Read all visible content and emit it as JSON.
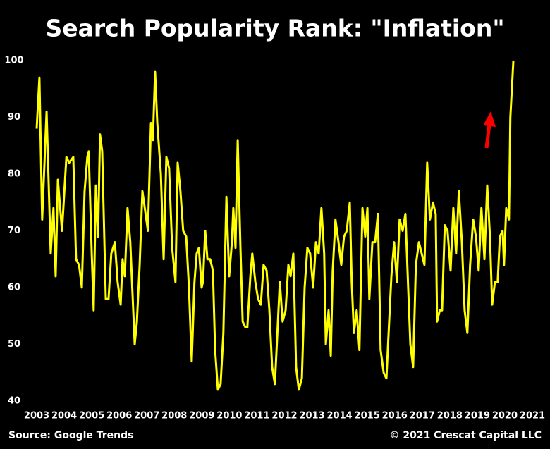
{
  "chart_data": {
    "type": "line",
    "title": "Search Popularity Rank: \"Inflation\"",
    "source": "Source: Google Trends",
    "copyright": "© 2021 Crescat Capital LLC",
    "color": "#ffff00",
    "xlim": [
      2003,
      2021
    ],
    "xticks": [
      2003,
      2004,
      2005,
      2006,
      2007,
      2008,
      2009,
      2010,
      2011,
      2012,
      2013,
      2014,
      2015,
      2016,
      2017,
      2018,
      2019,
      2020,
      2021
    ],
    "ylim": [
      40,
      100
    ],
    "yticks": [
      40,
      50,
      60,
      70,
      80,
      90,
      100
    ],
    "grid": false,
    "x": [
      2003.0,
      2003.1,
      2003.2,
      2003.36,
      2003.51,
      2003.61,
      2003.69,
      2003.77,
      2003.92,
      2004.08,
      2004.18,
      2004.33,
      2004.43,
      2004.54,
      2004.64,
      2004.74,
      2004.84,
      2004.89,
      2005.0,
      2005.07,
      2005.15,
      2005.23,
      2005.3,
      2005.38,
      2005.51,
      2005.61,
      2005.71,
      2005.84,
      2005.94,
      2006.05,
      2006.12,
      2006.2,
      2006.3,
      2006.4,
      2006.48,
      2006.56,
      2006.64,
      2006.74,
      2006.84,
      2006.94,
      2007.04,
      2007.15,
      2007.22,
      2007.3,
      2007.38,
      2007.51,
      2007.61,
      2007.71,
      2007.81,
      2007.92,
      2008.04,
      2008.12,
      2008.22,
      2008.32,
      2008.43,
      2008.53,
      2008.63,
      2008.73,
      2008.81,
      2008.89,
      2008.99,
      2009.04,
      2009.12,
      2009.2,
      2009.3,
      2009.4,
      2009.48,
      2009.58,
      2009.68,
      2009.78,
      2009.89,
      2009.99,
      2010.09,
      2010.14,
      2010.22,
      2010.3,
      2010.4,
      2010.48,
      2010.58,
      2010.65,
      2010.76,
      2010.83,
      2010.94,
      2011.04,
      2011.14,
      2011.24,
      2011.35,
      2011.45,
      2011.55,
      2011.65,
      2011.76,
      2011.83,
      2011.93,
      2012.04,
      2012.14,
      2012.22,
      2012.32,
      2012.42,
      2012.52,
      2012.63,
      2012.73,
      2012.83,
      2012.93,
      2013.04,
      2013.14,
      2013.24,
      2013.34,
      2013.44,
      2013.5,
      2013.6,
      2013.68,
      2013.75,
      2013.85,
      2013.96,
      2014.06,
      2014.16,
      2014.26,
      2014.37,
      2014.44,
      2014.52,
      2014.62,
      2014.72,
      2014.83,
      2014.93,
      2015.01,
      2015.08,
      2015.19,
      2015.29,
      2015.39,
      2015.49,
      2015.6,
      2015.7,
      2015.8,
      2015.88,
      2015.98,
      2016.08,
      2016.18,
      2016.29,
      2016.39,
      2016.49,
      2016.57,
      2016.67,
      2016.77,
      2016.88,
      2016.98,
      2017.08,
      2017.18,
      2017.28,
      2017.39,
      2017.49,
      2017.54,
      2017.64,
      2017.72,
      2017.82,
      2017.92,
      2018.03,
      2018.13,
      2018.23,
      2018.33,
      2018.44,
      2018.54,
      2018.64,
      2018.74,
      2018.85,
      2018.95,
      2019.05,
      2019.15,
      2019.26,
      2019.36,
      2019.46,
      2019.54,
      2019.64,
      2019.74,
      2019.82,
      2019.92,
      2019.97,
      2020.05,
      2020.15,
      2020.2,
      2020.31
    ],
    "values": [
      88,
      97,
      72,
      91,
      66,
      74,
      62,
      79,
      70,
      83,
      82,
      83,
      65,
      64,
      60,
      77,
      83,
      84,
      66,
      56,
      78,
      69,
      87,
      84,
      58,
      58,
      66,
      68,
      61,
      57,
      65,
      62,
      74,
      68,
      59,
      50,
      54,
      64,
      77,
      73.5,
      70,
      89,
      86,
      98,
      89,
      80,
      65,
      83,
      81,
      67,
      61,
      82,
      77,
      70,
      69,
      60,
      47,
      61,
      66,
      67,
      60,
      61,
      70,
      65,
      65,
      63,
      49,
      42,
      43,
      52,
      76,
      62,
      68,
      74,
      67,
      86,
      67,
      54,
      53,
      53,
      62,
      66,
      61,
      58,
      57,
      64,
      63,
      56,
      46,
      43,
      54,
      61,
      54,
      56,
      64,
      62,
      66,
      46,
      42,
      44,
      60,
      67,
      66,
      60,
      68,
      66,
      74,
      66,
      50,
      56,
      48,
      63,
      72,
      68,
      64,
      69,
      70,
      75,
      61,
      52,
      56,
      49,
      74,
      69,
      74,
      58,
      68,
      68,
      73,
      49,
      45,
      44,
      54,
      62,
      68,
      61,
      72,
      70,
      73,
      60,
      50,
      46,
      64,
      68,
      66,
      64,
      82,
      72,
      75,
      73,
      54,
      56,
      56,
      71,
      70,
      63,
      74,
      66,
      77,
      68,
      56,
      52,
      64,
      72,
      69,
      63,
      74,
      65,
      78,
      69,
      57,
      61,
      61,
      69,
      70,
      64,
      74,
      72,
      90,
      100
    ]
  }
}
